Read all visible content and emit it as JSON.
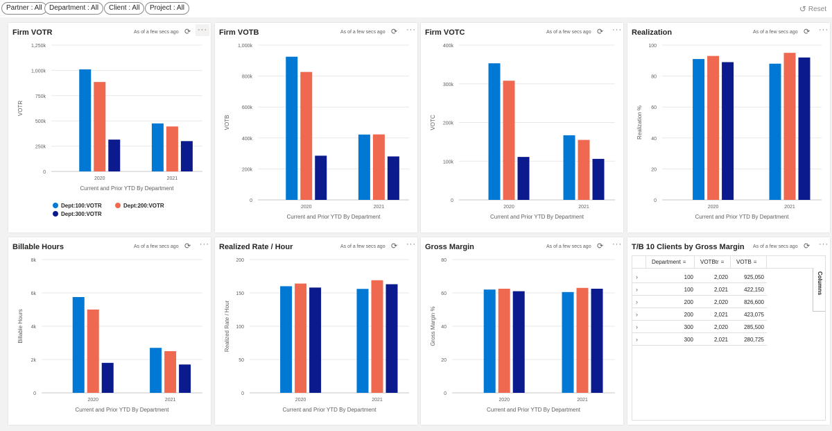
{
  "filters": [
    {
      "label": "Partner : All"
    },
    {
      "label": "Department : All"
    },
    {
      "label": "Client : All"
    },
    {
      "label": "Project : All"
    }
  ],
  "reset_label": "Reset",
  "as_of": "As of a few secs ago",
  "colors": {
    "dept100": "#0078d4",
    "dept200": "#ef6950",
    "dept300": "#0b1a8c"
  },
  "legend": [
    {
      "label": "Dept:100:VOTR"
    },
    {
      "label": "Dept:200:VOTR"
    },
    {
      "label": "Dept:300:VOTR"
    }
  ],
  "tiles": {
    "votr": {
      "title": "Firm VOTR"
    },
    "votb": {
      "title": "Firm VOTB"
    },
    "votc": {
      "title": "Firm VOTC"
    },
    "realization": {
      "title": "Realization"
    },
    "hours": {
      "title": "Billable Hours"
    },
    "rate": {
      "title": "Realized Rate / Hour"
    },
    "margin": {
      "title": "Gross Margin"
    },
    "clients": {
      "title": "T/B 10 Clients by Gross Margin"
    }
  },
  "chart_data": [
    {
      "type": "bar",
      "title": "Firm VOTR",
      "categories": [
        "2020",
        "2021"
      ],
      "series": [
        {
          "values": [
            1010000,
            475000
          ]
        },
        {
          "values": [
            885000,
            445000
          ]
        },
        {
          "values": [
            315000,
            300000
          ]
        }
      ],
      "ylabel": "VOTR",
      "xlabel": "Current and Prior YTD By Department",
      "ylim": [
        0,
        1250000
      ],
      "yticks": [
        "0",
        "250k",
        "500k",
        "750k",
        "1,000k",
        "1,250k"
      ],
      "legend": "bottom"
    },
    {
      "type": "bar",
      "title": "Firm VOTB",
      "categories": [
        "2020",
        "2021"
      ],
      "series": [
        {
          "values": [
            925050,
            422150
          ]
        },
        {
          "values": [
            826600,
            423075
          ]
        },
        {
          "values": [
            285500,
            280725
          ]
        }
      ],
      "ylabel": "VOTB",
      "xlabel": "Current and Prior YTD By Department",
      "ylim": [
        0,
        1000000
      ],
      "yticks": [
        "0",
        "200k",
        "400k",
        "600k",
        "800k",
        "1,000k"
      ]
    },
    {
      "type": "bar",
      "title": "Firm VOTC",
      "categories": [
        "2020",
        "2021"
      ],
      "series": [
        {
          "values": [
            353000,
            167000
          ]
        },
        {
          "values": [
            308000,
            155000
          ]
        },
        {
          "values": [
            111000,
            106000
          ]
        }
      ],
      "ylabel": "VOTC",
      "xlabel": "Current and Prior YTD By Department",
      "ylim": [
        0,
        400000
      ],
      "yticks": [
        "0",
        "100k",
        "200k",
        "300k",
        "400k"
      ]
    },
    {
      "type": "bar",
      "title": "Realization",
      "categories": [
        "2020",
        "2021"
      ],
      "series": [
        {
          "values": [
            91,
            88
          ]
        },
        {
          "values": [
            93,
            95
          ]
        },
        {
          "values": [
            89,
            92
          ]
        }
      ],
      "ylabel": "Realization %",
      "xlabel": "Current and Prior YTD By Department",
      "ylim": [
        0,
        100
      ],
      "yticks": [
        "0",
        "20",
        "40",
        "60",
        "80",
        "100"
      ]
    },
    {
      "type": "bar",
      "title": "Billable Hours",
      "categories": [
        "2020",
        "2021"
      ],
      "series": [
        {
          "values": [
            5750,
            2700
          ]
        },
        {
          "values": [
            5000,
            2500
          ]
        },
        {
          "values": [
            1800,
            1700
          ]
        }
      ],
      "ylabel": "Billable Hours",
      "xlabel": "Current and Prior YTD By Department",
      "ylim": [
        0,
        8000
      ],
      "yticks": [
        "0",
        "2k",
        "4k",
        "6k",
        "8k"
      ]
    },
    {
      "type": "bar",
      "title": "Realized Rate / Hour",
      "categories": [
        "2020",
        "2021"
      ],
      "series": [
        {
          "values": [
            160,
            156
          ]
        },
        {
          "values": [
            164,
            169
          ]
        },
        {
          "values": [
            158,
            163
          ]
        }
      ],
      "ylabel": "Realized Rate / Hour",
      "xlabel": "Current and Prior YTD By Department",
      "ylim": [
        0,
        200
      ],
      "yticks": [
        "0",
        "50",
        "100",
        "150",
        "200"
      ]
    },
    {
      "type": "bar",
      "title": "Gross Margin",
      "categories": [
        "2020",
        "2021"
      ],
      "series": [
        {
          "values": [
            62,
            60.5
          ]
        },
        {
          "values": [
            62.5,
            63
          ]
        },
        {
          "values": [
            61,
            62.5
          ]
        }
      ],
      "ylabel": "Gross Margin %",
      "xlabel": "Current and Prior YTD By Department",
      "ylim": [
        0,
        80
      ],
      "yticks": [
        "0",
        "20",
        "40",
        "60",
        "80"
      ]
    }
  ],
  "table": {
    "columns": [
      "Department",
      "VOTBtr",
      "VOTB"
    ],
    "rows": [
      [
        "100",
        "2,020",
        "925,050"
      ],
      [
        "100",
        "2,021",
        "422,150"
      ],
      [
        "200",
        "2,020",
        "826,600"
      ],
      [
        "200",
        "2,021",
        "423,075"
      ],
      [
        "300",
        "2,020",
        "285,500"
      ],
      [
        "300",
        "2,021",
        "280,725"
      ]
    ],
    "columns_panel_label": "Columns"
  }
}
